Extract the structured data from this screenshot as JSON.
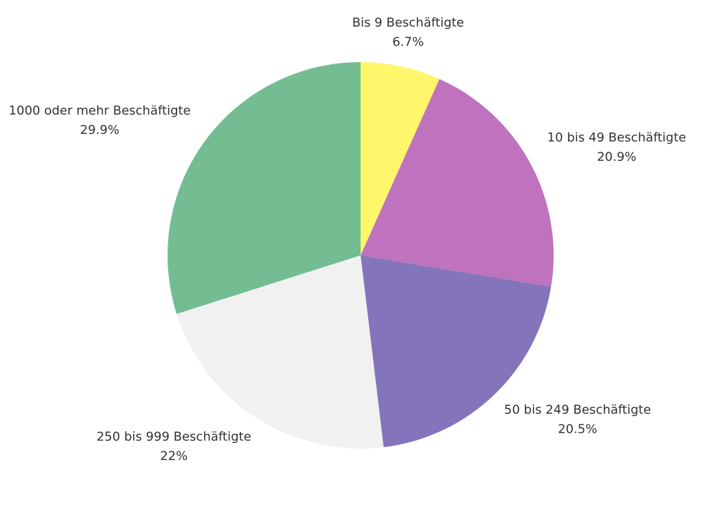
{
  "chart_data": {
    "type": "pie",
    "categories": [
      "Bis 9 Beschäftigte",
      "10 bis 49 Beschäftigte",
      "50 bis 249 Beschäftigte",
      "250 bis 999 Beschäftigte",
      "1000 oder mehr Beschäftigte"
    ],
    "values": [
      6.7,
      20.9,
      20.5,
      22,
      29.9
    ],
    "value_labels": [
      "6.7%",
      "20.9%",
      "20.5%",
      "22%",
      "29.9%"
    ],
    "colors": [
      "#fff66b",
      "#bf73bf",
      "#8474bb",
      "#f1f1f1",
      "#74bd93"
    ]
  }
}
